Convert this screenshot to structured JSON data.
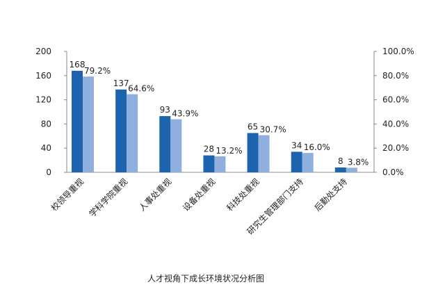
{
  "chart_data": {
    "type": "bar",
    "title": "人才视角下成长环境状况分析图",
    "categories": [
      "校领导重视",
      "学科学院重视",
      "人事处重视",
      "设备处重视",
      "科技处重视",
      "研究生管理部门支持",
      "后勤处支持"
    ],
    "series": [
      {
        "values": [
          168,
          137,
          93,
          28,
          65,
          34,
          8
        ],
        "value_labels": [
          "168",
          "137",
          "93",
          "28",
          "65",
          "34",
          "8"
        ],
        "axis": "left",
        "color": "#1e63ad"
      },
      {
        "values": [
          79.2,
          64.6,
          43.9,
          13.2,
          30.7,
          16.0,
          3.8
        ],
        "value_labels": [
          "79.2%",
          "64.6%",
          "43.9%",
          "13.2%",
          "30.7%",
          "16.0%",
          "3.8%"
        ],
        "axis": "right",
        "color": "#8fb0df"
      }
    ],
    "y_left": {
      "range": [
        0,
        200
      ],
      "ticks": [
        "0",
        "40",
        "80",
        "120",
        "160",
        "200"
      ]
    },
    "y_right": {
      "range": [
        0,
        100
      ],
      "ticks": [
        "0.0%",
        "20.0%",
        "40.0%",
        "60.0%",
        "80.0%",
        "100.0%"
      ]
    },
    "grid": false,
    "legend": "none"
  }
}
